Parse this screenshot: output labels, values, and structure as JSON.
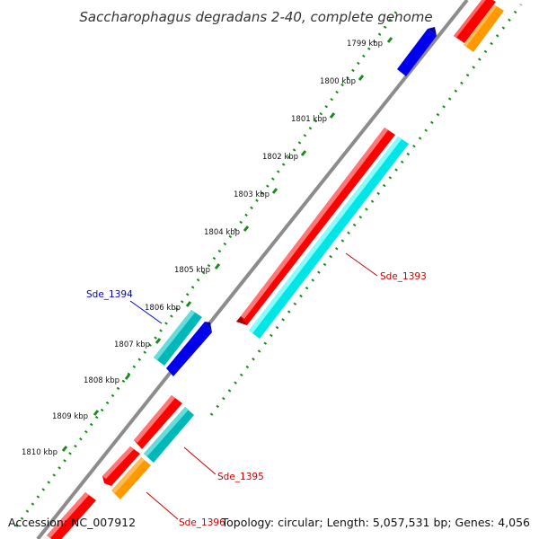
{
  "title": "Saccharophagus degradans 2-40, complete genome",
  "footer": {
    "accession": "Accession: NC_007912",
    "summary": "Topology: circular; Length: 5,057,531 bp; Genes: 4,056"
  },
  "ticks": [
    "1799 kbp",
    "1800 kbp",
    "1801 kbp",
    "1802 kbp",
    "1803 kbp",
    "1804 kbp",
    "1805 kbp",
    "1806 kbp",
    "1807 kbp",
    "1808 kbp",
    "1809 kbp",
    "1810 kbp"
  ],
  "gene_labels": [
    {
      "id": "Sde_1394",
      "text": "Sde_1394",
      "color": "#0000cc"
    },
    {
      "id": "Sde_1393",
      "text": "Sde_1393",
      "color": "#cc0000"
    },
    {
      "id": "Sde_1395",
      "text": "Sde_1395",
      "color": "#cc0000"
    },
    {
      "id": "Sde_1396",
      "text": "Sde_1396",
      "color": "#cc0000"
    }
  ],
  "colors": {
    "backbone": "#8c8c8c",
    "ticks": "#1a8a1a",
    "cds": "#ff0000",
    "cds_shade": "#b30000",
    "gene": "#0000ee",
    "trna": "#00e5e5",
    "trna_shade": "#00a0a0",
    "rrna": "#ff9900",
    "rrna_shade": "#c06800",
    "misc": "#00b8b8"
  }
}
